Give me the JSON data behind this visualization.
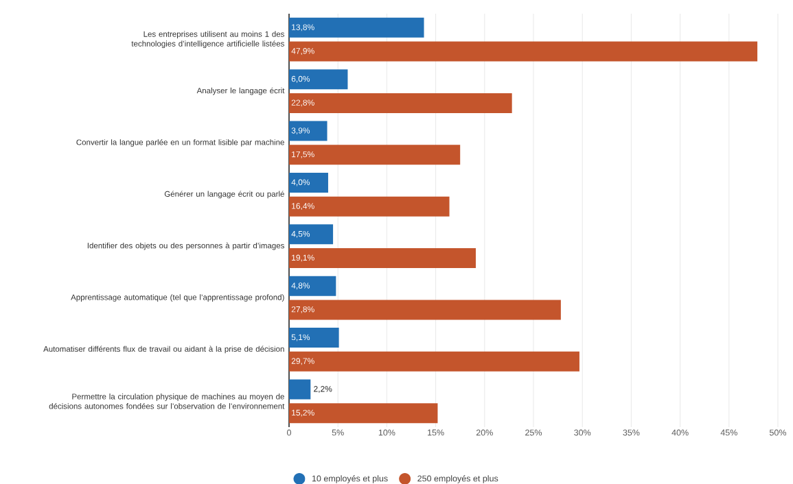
{
  "chart_data": {
    "type": "bar",
    "orientation": "horizontal",
    "categories": [
      "Les entreprises utilisent au moins 1 des technologies d’intelligence artificielle listées",
      "Analyser le langage écrit",
      "Convertir la langue parlée en un format lisible par machine",
      "Générer un langage écrit ou parlé",
      "Identifier des objets ou des personnes à partir d’images",
      "Apprentissage automatique (tel que l’apprentissage profond)",
      "Automatiser différents flux de travail ou aidant à la prise de décision",
      "Permettre la circulation physique de machines au moyen de décisions autonomes fondées sur l’observation de l’environnement"
    ],
    "series": [
      {
        "name": "10 employés et plus",
        "color": "#2270b5",
        "values": [
          13.8,
          6.0,
          3.9,
          4.0,
          4.5,
          4.8,
          5.1,
          2.2
        ],
        "value_labels": [
          "13,8%",
          "6,0%",
          "3,9%",
          "4,0%",
          "4,5%",
          "4,8%",
          "5,1%",
          "2,2%"
        ]
      },
      {
        "name": "250 employés et plus",
        "color": "#c4552c",
        "values": [
          47.9,
          22.8,
          17.5,
          16.4,
          19.1,
          27.8,
          29.7,
          15.2
        ],
        "value_labels": [
          "47,9%",
          "22,8%",
          "17,5%",
          "16,4%",
          "19,1%",
          "27,8%",
          "29,7%",
          "15,2%"
        ]
      }
    ],
    "xlim": [
      0,
      50
    ],
    "xticks": [
      {
        "value": 0,
        "label": "0"
      },
      {
        "value": 5,
        "label": "5%"
      },
      {
        "value": 10,
        "label": "10%"
      },
      {
        "value": 15,
        "label": "15%"
      },
      {
        "value": 20,
        "label": "20%"
      },
      {
        "value": 25,
        "label": "25%"
      },
      {
        "value": 30,
        "label": "30%"
      },
      {
        "value": 35,
        "label": "35%"
      },
      {
        "value": 40,
        "label": "40%"
      },
      {
        "value": 45,
        "label": "45%"
      },
      {
        "value": 50,
        "label": "50%"
      }
    ],
    "grid": "x",
    "legend": "bottom"
  }
}
